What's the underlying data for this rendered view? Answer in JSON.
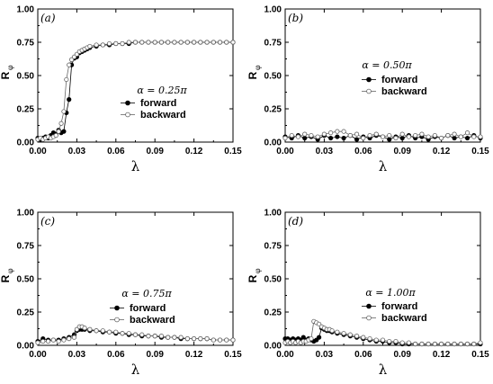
{
  "chart_data": [
    {
      "type": "line",
      "panel_label": "(a)",
      "annotation": "α = 0.25π",
      "xlabel": "λ",
      "ylabel": "R",
      "ylabel_sub": "φ",
      "xlim": [
        0.0,
        0.15
      ],
      "ylim": [
        0.0,
        1.0
      ],
      "xticks": [
        "0.00",
        "0.03",
        "0.06",
        "0.09",
        "0.12",
        "0.15"
      ],
      "yticks": [
        "0.00",
        "0.25",
        "0.50",
        "0.75",
        "1.00"
      ],
      "legend": [
        "forward",
        "backward"
      ],
      "series": [
        {
          "name": "forward",
          "marker": "filled",
          "x": [
            0.0,
            0.002,
            0.004,
            0.006,
            0.008,
            0.01,
            0.012,
            0.014,
            0.016,
            0.018,
            0.02,
            0.022,
            0.024,
            0.026,
            0.028,
            0.03,
            0.032,
            0.034,
            0.036,
            0.038,
            0.04,
            0.045,
            0.05,
            0.055,
            0.06,
            0.065,
            0.07,
            0.075,
            0.08,
            0.085,
            0.09,
            0.095,
            0.1,
            0.105,
            0.11,
            0.115,
            0.12,
            0.125,
            0.13,
            0.135,
            0.14,
            0.145,
            0.15
          ],
          "y": [
            0.03,
            0.02,
            0.03,
            0.04,
            0.03,
            0.05,
            0.07,
            0.06,
            0.09,
            0.07,
            0.08,
            0.22,
            0.32,
            0.58,
            0.63,
            0.64,
            0.67,
            0.68,
            0.69,
            0.7,
            0.71,
            0.72,
            0.73,
            0.73,
            0.74,
            0.74,
            0.74,
            0.75,
            0.75,
            0.75,
            0.75,
            0.75,
            0.75,
            0.75,
            0.75,
            0.75,
            0.75,
            0.75,
            0.75,
            0.75,
            0.75,
            0.75,
            0.75
          ]
        },
        {
          "name": "backward",
          "marker": "open",
          "x": [
            0.0,
            0.002,
            0.004,
            0.006,
            0.008,
            0.01,
            0.012,
            0.014,
            0.016,
            0.018,
            0.02,
            0.022,
            0.024,
            0.026,
            0.028,
            0.03,
            0.032,
            0.034,
            0.036,
            0.038,
            0.04,
            0.045,
            0.05,
            0.055,
            0.06,
            0.065,
            0.07,
            0.075,
            0.08,
            0.085,
            0.09,
            0.095,
            0.1,
            0.105,
            0.11,
            0.115,
            0.12,
            0.125,
            0.13,
            0.135,
            0.14,
            0.145,
            0.15
          ],
          "y": [
            0.02,
            0.03,
            0.02,
            0.03,
            0.04,
            0.03,
            0.04,
            0.05,
            0.08,
            0.14,
            0.23,
            0.47,
            0.58,
            0.62,
            0.64,
            0.66,
            0.68,
            0.69,
            0.7,
            0.71,
            0.72,
            0.73,
            0.73,
            0.74,
            0.74,
            0.74,
            0.75,
            0.75,
            0.75,
            0.75,
            0.75,
            0.75,
            0.75,
            0.75,
            0.75,
            0.75,
            0.75,
            0.75,
            0.75,
            0.75,
            0.75,
            0.75,
            0.75
          ]
        }
      ]
    },
    {
      "type": "line",
      "panel_label": "(b)",
      "annotation": "α = 0.50π",
      "xlabel": "λ",
      "ylabel": "R",
      "ylabel_sub": "φ",
      "xlim": [
        0.0,
        0.15
      ],
      "ylim": [
        0.0,
        1.0
      ],
      "xticks": [
        "0.00",
        "0.03",
        "0.06",
        "0.09",
        "0.12",
        "0.15"
      ],
      "yticks": [
        "0.00",
        "0.25",
        "0.50",
        "0.75",
        "1.00"
      ],
      "legend": [
        "forward",
        "backward"
      ],
      "series": [
        {
          "name": "forward",
          "marker": "filled",
          "x": [
            0.0,
            0.005,
            0.01,
            0.015,
            0.02,
            0.025,
            0.03,
            0.035,
            0.04,
            0.045,
            0.05,
            0.055,
            0.06,
            0.065,
            0.07,
            0.075,
            0.08,
            0.085,
            0.09,
            0.095,
            0.1,
            0.105,
            0.11,
            0.115,
            0.12,
            0.125,
            0.13,
            0.135,
            0.14,
            0.145,
            0.15
          ],
          "y": [
            0.04,
            0.03,
            0.05,
            0.03,
            0.04,
            0.02,
            0.05,
            0.03,
            0.04,
            0.03,
            0.05,
            0.02,
            0.04,
            0.03,
            0.05,
            0.04,
            0.02,
            0.04,
            0.03,
            0.05,
            0.03,
            0.04,
            0.02,
            0.04,
            0.03,
            0.05,
            0.03,
            0.04,
            0.03,
            0.05,
            0.03
          ]
        },
        {
          "name": "backward",
          "marker": "open",
          "x": [
            0.0,
            0.005,
            0.01,
            0.015,
            0.02,
            0.025,
            0.03,
            0.035,
            0.04,
            0.045,
            0.05,
            0.055,
            0.06,
            0.065,
            0.07,
            0.075,
            0.08,
            0.085,
            0.09,
            0.095,
            0.1,
            0.105,
            0.11,
            0.115,
            0.12,
            0.125,
            0.13,
            0.135,
            0.14,
            0.145,
            0.15
          ],
          "y": [
            0.03,
            0.05,
            0.04,
            0.06,
            0.05,
            0.04,
            0.06,
            0.07,
            0.08,
            0.08,
            0.05,
            0.06,
            0.03,
            0.05,
            0.06,
            0.04,
            0.05,
            0.03,
            0.06,
            0.04,
            0.05,
            0.06,
            0.04,
            0.05,
            0.03,
            0.05,
            0.06,
            0.04,
            0.07,
            0.04,
            0.04
          ]
        }
      ]
    },
    {
      "type": "line",
      "panel_label": "(c)",
      "annotation": "α = 0.75π",
      "xlabel": "λ",
      "ylabel": "R",
      "ylabel_sub": "φ",
      "xlim": [
        0.0,
        0.15
      ],
      "ylim": [
        0.0,
        1.0
      ],
      "xticks": [
        "0.00",
        "0.03",
        "0.06",
        "0.09",
        "0.12",
        "0.15"
      ],
      "yticks": [
        "0.00",
        "0.25",
        "0.50",
        "0.75",
        "1.00"
      ],
      "legend": [
        "forward",
        "backward"
      ],
      "series": [
        {
          "name": "forward",
          "marker": "filled",
          "x": [
            0.0,
            0.004,
            0.008,
            0.012,
            0.016,
            0.02,
            0.024,
            0.028,
            0.03,
            0.032,
            0.034,
            0.036,
            0.04,
            0.045,
            0.05,
            0.055,
            0.06,
            0.065,
            0.07,
            0.075,
            0.08,
            0.085,
            0.09,
            0.095,
            0.1,
            0.105,
            0.11,
            0.115,
            0.12,
            0.125,
            0.13,
            0.135,
            0.14,
            0.145,
            0.15
          ],
          "y": [
            0.03,
            0.05,
            0.04,
            0.04,
            0.04,
            0.05,
            0.06,
            0.08,
            0.11,
            0.12,
            0.12,
            0.12,
            0.11,
            0.11,
            0.1,
            0.1,
            0.09,
            0.09,
            0.08,
            0.08,
            0.07,
            0.07,
            0.07,
            0.06,
            0.06,
            0.06,
            0.05,
            0.05,
            0.05,
            0.05,
            0.05,
            0.04,
            0.04,
            0.04,
            0.04
          ]
        },
        {
          "name": "backward",
          "marker": "open",
          "x": [
            0.0,
            0.004,
            0.008,
            0.012,
            0.016,
            0.02,
            0.024,
            0.028,
            0.03,
            0.032,
            0.034,
            0.036,
            0.04,
            0.045,
            0.05,
            0.055,
            0.06,
            0.065,
            0.07,
            0.075,
            0.08,
            0.085,
            0.09,
            0.095,
            0.1,
            0.105,
            0.11,
            0.115,
            0.12,
            0.125,
            0.13,
            0.135,
            0.14,
            0.145,
            0.15
          ],
          "y": [
            0.02,
            0.03,
            0.03,
            0.04,
            0.03,
            0.04,
            0.05,
            0.06,
            0.12,
            0.14,
            0.14,
            0.13,
            0.12,
            0.11,
            0.11,
            0.1,
            0.1,
            0.09,
            0.09,
            0.08,
            0.08,
            0.07,
            0.07,
            0.07,
            0.06,
            0.06,
            0.06,
            0.05,
            0.05,
            0.05,
            0.05,
            0.04,
            0.04,
            0.04,
            0.04
          ]
        }
      ]
    },
    {
      "type": "line",
      "panel_label": "(d)",
      "annotation": "α = 1.00π",
      "xlabel": "λ",
      "ylabel": "R",
      "ylabel_sub": "φ",
      "xlim": [
        0.0,
        0.15
      ],
      "ylim": [
        0.0,
        1.0
      ],
      "xticks": [
        "0.00",
        "0.03",
        "0.06",
        "0.09",
        "0.12",
        "0.15"
      ],
      "yticks": [
        "0.00",
        "0.25",
        "0.50",
        "0.75",
        "1.00"
      ],
      "legend": [
        "forward",
        "backward"
      ],
      "series": [
        {
          "name": "forward",
          "marker": "filled",
          "x": [
            0.0,
            0.002,
            0.004,
            0.006,
            0.008,
            0.01,
            0.012,
            0.014,
            0.016,
            0.018,
            0.02,
            0.022,
            0.024,
            0.026,
            0.028,
            0.03,
            0.032,
            0.034,
            0.036,
            0.04,
            0.045,
            0.05,
            0.055,
            0.06,
            0.065,
            0.07,
            0.075,
            0.08,
            0.085,
            0.09,
            0.095,
            0.1,
            0.105,
            0.11,
            0.115,
            0.12,
            0.125,
            0.13,
            0.135,
            0.14,
            0.145,
            0.15
          ],
          "y": [
            0.05,
            0.05,
            0.04,
            0.05,
            0.04,
            0.05,
            0.04,
            0.06,
            0.04,
            0.05,
            0.04,
            0.03,
            0.04,
            0.06,
            0.13,
            0.12,
            0.11,
            0.11,
            0.1,
            0.09,
            0.08,
            0.07,
            0.06,
            0.05,
            0.04,
            0.03,
            0.03,
            0.02,
            0.02,
            0.01,
            0.01,
            0.01,
            0.01,
            0.01,
            0.01,
            0.01,
            0.01,
            0.01,
            0.01,
            0.01,
            0.01,
            0.01
          ]
        },
        {
          "name": "backward",
          "marker": "open",
          "x": [
            0.0,
            0.002,
            0.004,
            0.006,
            0.008,
            0.01,
            0.012,
            0.014,
            0.016,
            0.018,
            0.02,
            0.022,
            0.024,
            0.026,
            0.028,
            0.03,
            0.032,
            0.034,
            0.036,
            0.04,
            0.045,
            0.05,
            0.055,
            0.06,
            0.065,
            0.07,
            0.075,
            0.08,
            0.085,
            0.09,
            0.095,
            0.1,
            0.105,
            0.11,
            0.115,
            0.12,
            0.125,
            0.13,
            0.135,
            0.14,
            0.145,
            0.15
          ],
          "y": [
            0.02,
            0.03,
            0.02,
            0.03,
            0.02,
            0.03,
            0.02,
            0.03,
            0.03,
            0.04,
            0.05,
            0.18,
            0.17,
            0.16,
            0.14,
            0.13,
            0.12,
            0.12,
            0.11,
            0.1,
            0.09,
            0.08,
            0.07,
            0.06,
            0.05,
            0.04,
            0.04,
            0.03,
            0.03,
            0.02,
            0.02,
            0.01,
            0.01,
            0.01,
            0.01,
            0.01,
            0.01,
            0.01,
            0.01,
            0.01,
            0.01,
            0.02
          ]
        }
      ]
    }
  ]
}
